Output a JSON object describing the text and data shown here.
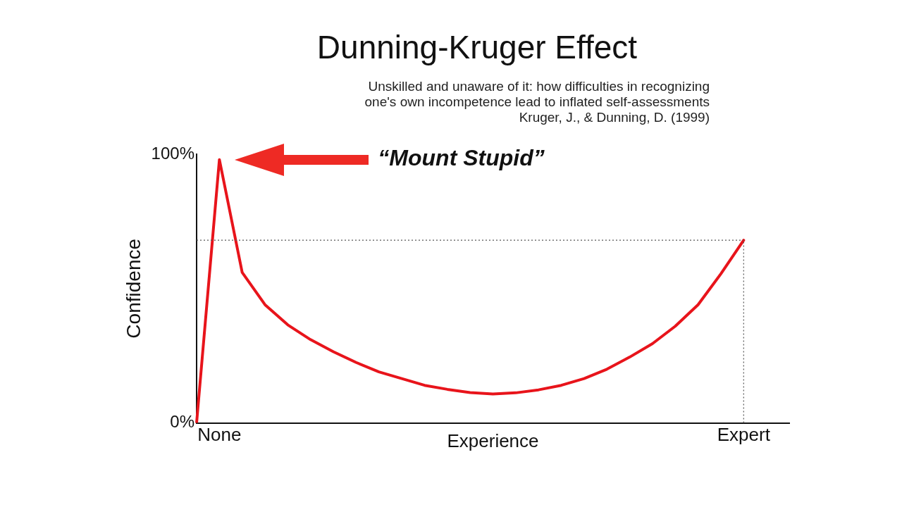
{
  "chart_data": {
    "type": "line",
    "title": "Dunning-Kruger Effect",
    "subtitle": "Unskilled and unaware of it: how difficulties in recognizing\none's own incompetence lead to inflated self-assessments\nKruger, J., & Dunning, D. (1999)",
    "xlabel": "Experience",
    "ylabel": "Confidence",
    "categories": [
      null,
      "None",
      null,
      null,
      null,
      null,
      null,
      null,
      null,
      null,
      null,
      null,
      null,
      null,
      null,
      null,
      null,
      null,
      null,
      null,
      null,
      null,
      null,
      null,
      "Expert",
      null,
      null
    ],
    "series": [
      {
        "color": "#e8141b",
        "values": [
          0,
          98,
          56,
          44,
          36.5,
          31,
          26.5,
          22.5,
          19,
          16.5,
          14,
          12.5,
          11.3,
          10.8,
          11.2,
          12.3,
          14,
          16.5,
          20,
          24.5,
          29.5,
          36,
          44,
          55.5,
          68,
          null,
          null
        ]
      }
    ],
    "ylim": [
      0,
      100
    ],
    "yticks": [
      {
        "value": 0,
        "label": "0%"
      },
      {
        "value": 100,
        "label": "100%"
      }
    ],
    "ref_lines": [
      {
        "axis": "y",
        "value": 68,
        "line_style": "dotted",
        "color": "#555555"
      },
      {
        "axis": "x",
        "value": "Expert",
        "line_style": "dotted",
        "color": "#555555"
      }
    ],
    "annotations": [
      "“Mount Stupid”"
    ],
    "grid": false,
    "legend": false,
    "marker": "none",
    "line_style": "solid"
  }
}
